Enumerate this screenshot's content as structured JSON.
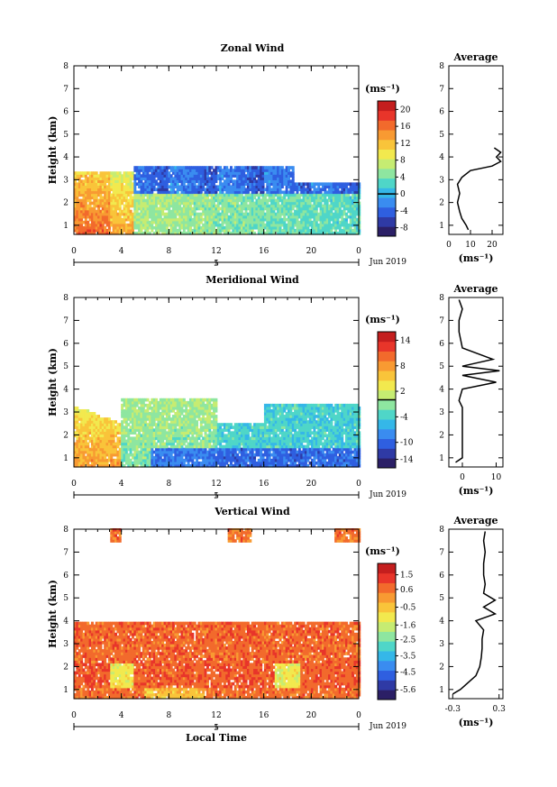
{
  "chart_data": [
    {
      "type": "heatmap",
      "title": "Zonal Wind",
      "ylabel": "Height (km)",
      "x_ticks": [
        "0",
        "4",
        "8",
        "12",
        "16",
        "20",
        "0"
      ],
      "y_ticks": [
        "1",
        "2",
        "3",
        "4",
        "5",
        "6",
        "7",
        "8"
      ],
      "xlim": [
        0,
        24
      ],
      "ylim": [
        0.6,
        8.0
      ],
      "date_tick": "5",
      "date_label": "Jun 2019",
      "colorbar": {
        "unit": "(ms⁻¹)",
        "ticks": [
          "20",
          "16",
          "12",
          "8",
          "4",
          "0",
          "-4",
          "-8"
        ],
        "values": [
          20,
          16,
          12,
          8,
          4,
          0,
          -4,
          -8
        ],
        "range": [
          -10,
          22
        ],
        "contour_level": 0
      },
      "profile": {
        "title": "Average",
        "x_ticks": [
          "0",
          "10",
          "20"
        ],
        "xlim": [
          0,
          25
        ],
        "xlabel": "(ms⁻¹)",
        "height": [
          0.8,
          1.0,
          1.3,
          1.6,
          2.0,
          2.4,
          2.8,
          3.1,
          3.4,
          3.6,
          3.8,
          4.0,
          4.2,
          4.4
        ],
        "value": [
          9,
          8,
          6,
          5,
          4,
          5,
          4,
          6,
          10,
          20,
          24,
          22,
          24,
          21
        ]
      }
    },
    {
      "type": "heatmap",
      "title": "Meridional Wind",
      "ylabel": "Height (km)",
      "x_ticks": [
        "0",
        "4",
        "8",
        "12",
        "16",
        "20",
        "0"
      ],
      "y_ticks": [
        "1",
        "2",
        "3",
        "4",
        "5",
        "6",
        "7",
        "8"
      ],
      "xlim": [
        0,
        24
      ],
      "ylim": [
        0.6,
        8.0
      ],
      "date_tick": "5",
      "date_label": "Jun 2019",
      "colorbar": {
        "unit": "(ms⁻¹)",
        "ticks": [
          "14",
          "8",
          "2",
          "-4",
          "-10",
          "-14"
        ],
        "values": [
          14,
          8,
          2,
          -4,
          -10,
          -14
        ],
        "range": [
          -16,
          16
        ],
        "contour_level": 0
      },
      "profile": {
        "title": "Average",
        "x_ticks": [
          "0",
          "10"
        ],
        "xlim": [
          -4,
          12
        ],
        "xlabel": "(ms⁻¹)",
        "height": [
          0.8,
          1.0,
          1.3,
          1.6,
          2.0,
          2.4,
          2.8,
          3.2,
          3.5,
          4.0,
          4.3,
          4.6,
          4.8,
          5.0,
          5.3,
          5.8,
          6.5,
          7.0,
          7.5,
          7.9
        ],
        "value": [
          -2,
          0,
          0,
          0,
          0,
          0,
          0,
          0,
          -1,
          0,
          10,
          0,
          11,
          0,
          9,
          0,
          -1,
          -1,
          0,
          -1
        ]
      }
    },
    {
      "type": "heatmap",
      "title": "Vertical Wind",
      "ylabel": "Height (km)",
      "xlabel": "Local Time",
      "x_ticks": [
        "0",
        "4",
        "8",
        "12",
        "16",
        "20",
        "0"
      ],
      "y_ticks": [
        "1",
        "2",
        "3",
        "4",
        "5",
        "6",
        "7",
        "8"
      ],
      "xlim": [
        0,
        24
      ],
      "ylim": [
        0.6,
        8.0
      ],
      "date_tick": "5",
      "date_label": "Jun 2019",
      "colorbar": {
        "unit": "(ms⁻¹)",
        "ticks": [
          "1.5",
          "0.6",
          "-0.5",
          "-1.6",
          "-2.5",
          "-3.5",
          "-4.5",
          "-5.6"
        ],
        "values": [
          1.5,
          0.6,
          -0.5,
          -1.6,
          -2.5,
          -3.5,
          -4.5,
          -5.6
        ],
        "range": [
          -6.2,
          2.2
        ],
        "contour_level": null
      },
      "profile": {
        "title": "Average",
        "x_ticks": [
          "-0.3",
          "0.3"
        ],
        "xlim": [
          -0.35,
          0.35
        ],
        "xlabel": "(ms⁻¹)",
        "height": [
          0.8,
          1.0,
          1.3,
          1.6,
          2.0,
          2.4,
          2.8,
          3.2,
          3.6,
          4.0,
          4.3,
          4.6,
          4.9,
          5.2,
          5.6,
          6.0,
          6.5,
          7.0,
          7.5,
          7.9
        ],
        "value": [
          -0.3,
          -0.2,
          -0.1,
          0.0,
          0.05,
          0.07,
          0.08,
          0.08,
          0.1,
          0.0,
          0.25,
          0.1,
          0.25,
          0.1,
          0.12,
          0.1,
          0.1,
          0.12,
          0.1,
          0.12
        ]
      }
    }
  ]
}
